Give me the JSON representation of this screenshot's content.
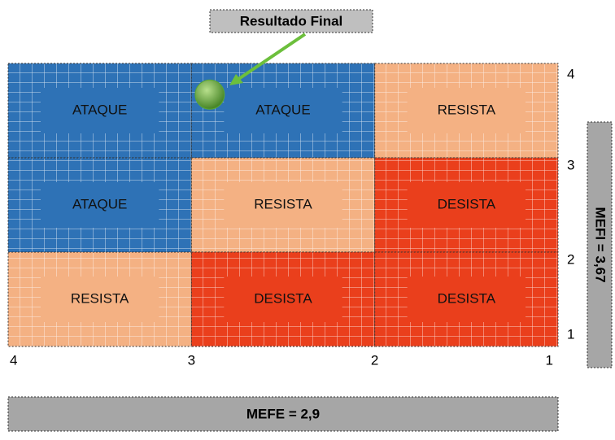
{
  "title": "Resultado Final",
  "x_axis": {
    "label": "MEFE = 2,9",
    "lim": [
      4,
      1
    ],
    "ticks": [
      4,
      3,
      2,
      1
    ]
  },
  "y_axis": {
    "label": "MEFI = 3,67",
    "lim": [
      1,
      4
    ],
    "ticks": [
      4,
      3,
      2,
      1
    ]
  },
  "cells": [
    [
      "ATAQUE",
      "ATAQUE",
      "RESISTA"
    ],
    [
      "ATAQUE",
      "RESISTA",
      "DESISTA"
    ],
    [
      "RESISTA",
      "DESISTA",
      "DESISTA"
    ]
  ],
  "colors": {
    "ATAQUE": "#2e72b6",
    "RESISTA": "#f4b183",
    "DESISTA": "#ea3f1c"
  },
  "point": {
    "x": 2.9,
    "y": 3.67,
    "color": "#5aa832"
  }
}
